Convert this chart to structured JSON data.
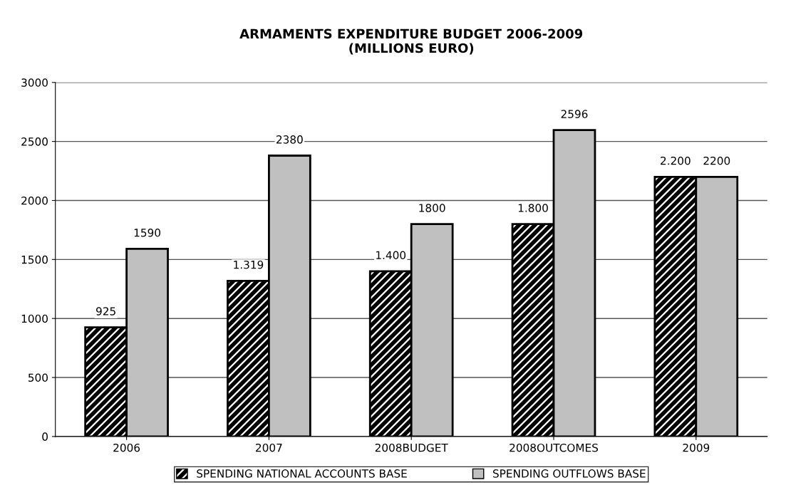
{
  "chart_data": {
    "type": "bar",
    "title": "ARMAMENTS EXPENDITURE BUDGET 2006-2009\n(MILLIONS EURO)",
    "categories": [
      "2006",
      "2007",
      "2008BUDGET",
      "2008OUTCOMES",
      "2009"
    ],
    "series": [
      {
        "name": "SPENDING NATIONAL ACCOUNTS BASE",
        "color": "#000000",
        "values": [
          925,
          1319,
          1400,
          1800,
          2200
        ],
        "value_labels": [
          "925",
          "1.319",
          "1.400",
          "1.800",
          "2.200"
        ]
      },
      {
        "name": "SPENDING OUTFLOWS BASE",
        "color": "#c0c0c0",
        "values": [
          1590,
          2380,
          1800,
          2596,
          2200
        ],
        "value_labels": [
          "1590",
          "2380",
          "1800",
          "2596",
          "2200"
        ]
      }
    ],
    "ylim": [
      0,
      3000
    ],
    "yticks": [
      0,
      500,
      1000,
      1500,
      2000,
      2500,
      3000
    ],
    "grid": "y",
    "legend": "bottom"
  }
}
